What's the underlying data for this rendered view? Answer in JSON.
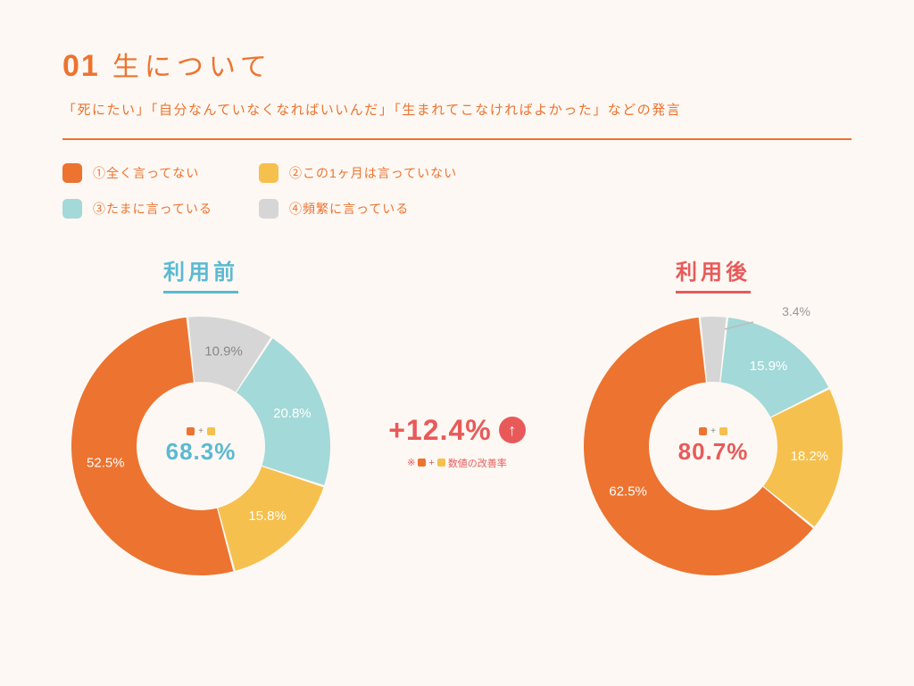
{
  "header": {
    "number": "01",
    "title": "生について",
    "subtitle": "「死にたい」「自分なんていなくなればいいんだ」「生まれてこなければよかった」などの発言"
  },
  "colors": {
    "primary": "#ed7330",
    "c1": "#ed7330",
    "c2": "#f6c04e",
    "c3": "#a3d9d8",
    "c4": "#d6d6d6",
    "before_accent": "#5bb9d3",
    "after_accent": "#e85a5a",
    "background": "#fdf8f3",
    "label_gray": "#888888"
  },
  "legend": [
    {
      "color": "#ed7330",
      "label": "①全く言ってない"
    },
    {
      "color": "#f6c04e",
      "label": "②この1ヶ月は言っていない"
    },
    {
      "color": "#a3d9d8",
      "label": "③たまに言っている"
    },
    {
      "color": "#d6d6d6",
      "label": "④頻繁に言っている"
    }
  ],
  "charts": {
    "before": {
      "label": "利用前",
      "center_pct": "68.3%",
      "slices": [
        {
          "value": 10.9,
          "color": "#d6d6d6",
          "label": "10.9%",
          "label_dark": true
        },
        {
          "value": 20.8,
          "color": "#a3d9d8",
          "label": "20.8%"
        },
        {
          "value": 15.8,
          "color": "#f6c04e",
          "label": "15.8%"
        },
        {
          "value": 52.5,
          "color": "#ed7330",
          "label": "52.5%"
        }
      ]
    },
    "after": {
      "label": "利用後",
      "center_pct": "80.7%",
      "ext_label": "3.4%",
      "slices": [
        {
          "value": 3.4,
          "color": "#d6d6d6",
          "label": "",
          "label_dark": true
        },
        {
          "value": 15.9,
          "color": "#a3d9d8",
          "label": "15.9%"
        },
        {
          "value": 18.2,
          "color": "#f6c04e",
          "label": "18.2%"
        },
        {
          "value": 62.5,
          "color": "#ed7330",
          "label": "62.5%"
        }
      ]
    }
  },
  "delta": {
    "value": "+12.4%",
    "note_prefix": "※",
    "note_suffix": "数値の改善率"
  },
  "donut_style": {
    "outer_radius": 145,
    "inner_radius": 72,
    "gap_deg": 1.0,
    "start_angle_deg": -6
  }
}
